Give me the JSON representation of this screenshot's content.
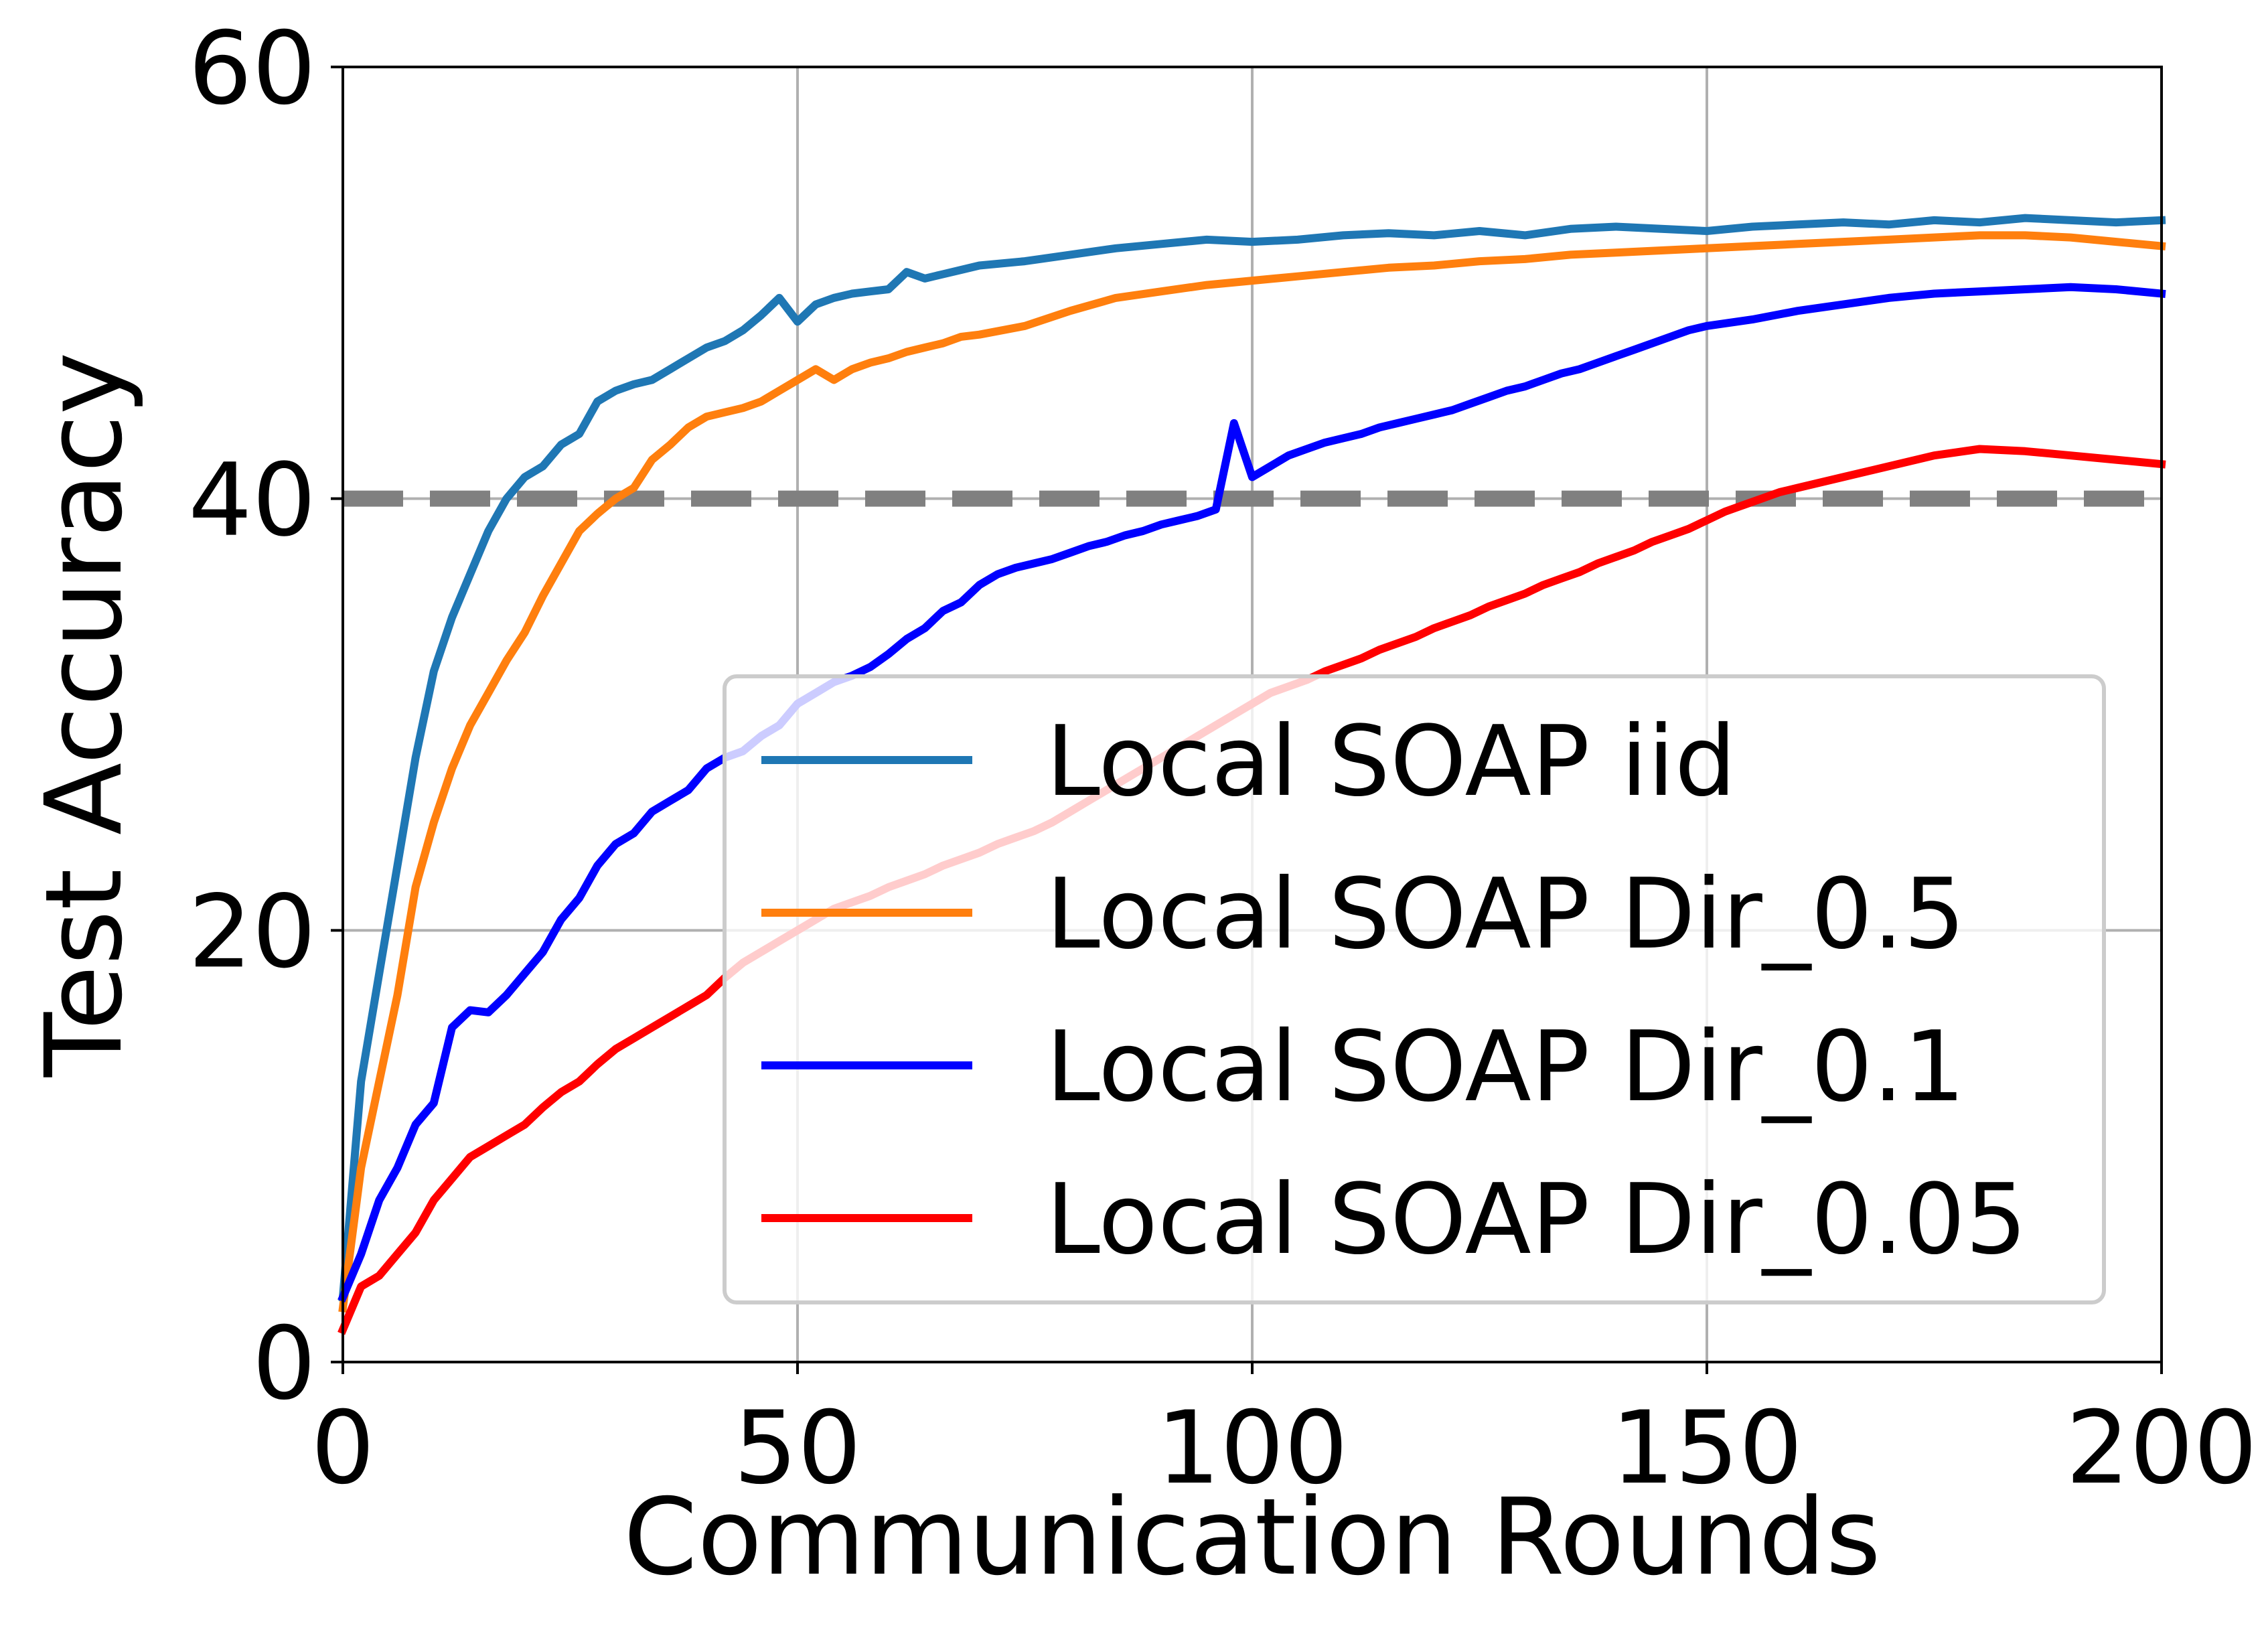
{
  "chart_data": {
    "type": "line",
    "title": "",
    "xlabel": "Communication Rounds",
    "ylabel": "Test Accuracy",
    "xlim": [
      0,
      200
    ],
    "ylim": [
      0,
      60
    ],
    "xticks": [
      0,
      50,
      100,
      150,
      200
    ],
    "yticks": [
      0,
      20,
      40,
      60
    ],
    "xtick_labels": [
      "0",
      "50",
      "100",
      "150",
      "200"
    ],
    "ytick_labels": [
      "0",
      "20",
      "40",
      "60"
    ],
    "grid": true,
    "reference_line": {
      "y": 40,
      "color": "#808080",
      "style": "dashed"
    },
    "legend_position": "lower-right",
    "series": [
      {
        "name": "Local SOAP iid",
        "color": "#1f77b4",
        "points": [
          [
            0,
            3
          ],
          [
            2,
            13
          ],
          [
            4,
            18
          ],
          [
            6,
            23
          ],
          [
            8,
            28
          ],
          [
            10,
            32
          ],
          [
            12,
            34.5
          ],
          [
            14,
            36.5
          ],
          [
            16,
            38.5
          ],
          [
            18,
            40
          ],
          [
            20,
            41
          ],
          [
            22,
            41.5
          ],
          [
            24,
            42.5
          ],
          [
            26,
            43
          ],
          [
            28,
            44.5
          ],
          [
            30,
            45
          ],
          [
            32,
            45.3
          ],
          [
            34,
            45.5
          ],
          [
            36,
            46
          ],
          [
            38,
            46.5
          ],
          [
            40,
            47
          ],
          [
            42,
            47.3
          ],
          [
            44,
            47.8
          ],
          [
            46,
            48.5
          ],
          [
            48,
            49.3
          ],
          [
            50,
            48.2
          ],
          [
            52,
            49
          ],
          [
            54,
            49.3
          ],
          [
            56,
            49.5
          ],
          [
            58,
            49.6
          ],
          [
            60,
            49.7
          ],
          [
            62,
            50.5
          ],
          [
            64,
            50.2
          ],
          [
            66,
            50.4
          ],
          [
            68,
            50.6
          ],
          [
            70,
            50.8
          ],
          [
            75,
            51
          ],
          [
            80,
            51.3
          ],
          [
            85,
            51.6
          ],
          [
            90,
            51.8
          ],
          [
            95,
            52
          ],
          [
            100,
            51.9
          ],
          [
            105,
            52
          ],
          [
            110,
            52.2
          ],
          [
            115,
            52.3
          ],
          [
            120,
            52.2
          ],
          [
            125,
            52.4
          ],
          [
            130,
            52.2
          ],
          [
            135,
            52.5
          ],
          [
            140,
            52.6
          ],
          [
            145,
            52.5
          ],
          [
            150,
            52.4
          ],
          [
            155,
            52.6
          ],
          [
            160,
            52.7
          ],
          [
            165,
            52.8
          ],
          [
            170,
            52.7
          ],
          [
            175,
            52.9
          ],
          [
            180,
            52.8
          ],
          [
            185,
            53
          ],
          [
            190,
            52.9
          ],
          [
            195,
            52.8
          ],
          [
            200,
            52.9
          ]
        ]
      },
      {
        "name": "Local SOAP Dir_0.5",
        "color": "#ff7f0e",
        "points": [
          [
            0,
            2.5
          ],
          [
            2,
            9
          ],
          [
            4,
            13
          ],
          [
            6,
            17
          ],
          [
            8,
            22
          ],
          [
            10,
            25
          ],
          [
            12,
            27.5
          ],
          [
            14,
            29.5
          ],
          [
            16,
            31
          ],
          [
            18,
            32.5
          ],
          [
            20,
            33.8
          ],
          [
            22,
            35.5
          ],
          [
            24,
            37
          ],
          [
            26,
            38.5
          ],
          [
            28,
            39.3
          ],
          [
            30,
            40
          ],
          [
            32,
            40.5
          ],
          [
            34,
            41.8
          ],
          [
            36,
            42.5
          ],
          [
            38,
            43.3
          ],
          [
            40,
            43.8
          ],
          [
            42,
            44
          ],
          [
            44,
            44.2
          ],
          [
            46,
            44.5
          ],
          [
            48,
            45
          ],
          [
            50,
            45.5
          ],
          [
            52,
            46
          ],
          [
            54,
            45.5
          ],
          [
            56,
            46
          ],
          [
            58,
            46.3
          ],
          [
            60,
            46.5
          ],
          [
            62,
            46.8
          ],
          [
            64,
            47
          ],
          [
            66,
            47.2
          ],
          [
            68,
            47.5
          ],
          [
            70,
            47.6
          ],
          [
            75,
            48
          ],
          [
            80,
            48.7
          ],
          [
            85,
            49.3
          ],
          [
            90,
            49.6
          ],
          [
            95,
            49.9
          ],
          [
            100,
            50.1
          ],
          [
            105,
            50.3
          ],
          [
            110,
            50.5
          ],
          [
            115,
            50.7
          ],
          [
            120,
            50.8
          ],
          [
            125,
            51
          ],
          [
            130,
            51.1
          ],
          [
            135,
            51.3
          ],
          [
            140,
            51.4
          ],
          [
            145,
            51.5
          ],
          [
            150,
            51.6
          ],
          [
            155,
            51.7
          ],
          [
            160,
            51.8
          ],
          [
            165,
            51.9
          ],
          [
            170,
            52
          ],
          [
            175,
            52.1
          ],
          [
            180,
            52.2
          ],
          [
            185,
            52.2
          ],
          [
            190,
            52.1
          ],
          [
            195,
            51.9
          ],
          [
            200,
            51.7
          ]
        ]
      },
      {
        "name": "Local SOAP Dir_0.1",
        "color": "#0000ff",
        "points": [
          [
            0,
            3
          ],
          [
            2,
            5
          ],
          [
            4,
            7.5
          ],
          [
            6,
            9
          ],
          [
            8,
            11
          ],
          [
            10,
            12
          ],
          [
            12,
            15.5
          ],
          [
            14,
            16.3
          ],
          [
            16,
            16.2
          ],
          [
            18,
            17
          ],
          [
            20,
            18
          ],
          [
            22,
            19
          ],
          [
            24,
            20.5
          ],
          [
            26,
            21.5
          ],
          [
            28,
            23
          ],
          [
            30,
            24
          ],
          [
            32,
            24.5
          ],
          [
            34,
            25.5
          ],
          [
            36,
            26
          ],
          [
            38,
            26.5
          ],
          [
            40,
            27.5
          ],
          [
            42,
            28
          ],
          [
            44,
            28.3
          ],
          [
            46,
            29
          ],
          [
            48,
            29.5
          ],
          [
            50,
            30.5
          ],
          [
            52,
            31
          ],
          [
            54,
            31.5
          ],
          [
            56,
            31.8
          ],
          [
            58,
            32.2
          ],
          [
            60,
            32.8
          ],
          [
            62,
            33.5
          ],
          [
            64,
            34
          ],
          [
            66,
            34.8
          ],
          [
            68,
            35.2
          ],
          [
            70,
            36
          ],
          [
            72,
            36.5
          ],
          [
            74,
            36.8
          ],
          [
            76,
            37
          ],
          [
            78,
            37.2
          ],
          [
            80,
            37.5
          ],
          [
            82,
            37.8
          ],
          [
            84,
            38
          ],
          [
            86,
            38.3
          ],
          [
            88,
            38.5
          ],
          [
            90,
            38.8
          ],
          [
            92,
            39
          ],
          [
            94,
            39.2
          ],
          [
            96,
            39.5
          ],
          [
            98,
            43.5
          ],
          [
            100,
            41
          ],
          [
            102,
            41.5
          ],
          [
            104,
            42
          ],
          [
            106,
            42.3
          ],
          [
            108,
            42.6
          ],
          [
            110,
            42.8
          ],
          [
            112,
            43
          ],
          [
            114,
            43.3
          ],
          [
            116,
            43.5
          ],
          [
            118,
            43.7
          ],
          [
            120,
            43.9
          ],
          [
            122,
            44.1
          ],
          [
            124,
            44.4
          ],
          [
            126,
            44.7
          ],
          [
            128,
            45
          ],
          [
            130,
            45.2
          ],
          [
            132,
            45.5
          ],
          [
            134,
            45.8
          ],
          [
            136,
            46
          ],
          [
            138,
            46.3
          ],
          [
            140,
            46.6
          ],
          [
            142,
            46.9
          ],
          [
            144,
            47.2
          ],
          [
            146,
            47.5
          ],
          [
            148,
            47.8
          ],
          [
            150,
            48
          ],
          [
            155,
            48.3
          ],
          [
            160,
            48.7
          ],
          [
            165,
            49
          ],
          [
            170,
            49.3
          ],
          [
            175,
            49.5
          ],
          [
            180,
            49.6
          ],
          [
            185,
            49.7
          ],
          [
            190,
            49.8
          ],
          [
            195,
            49.7
          ],
          [
            200,
            49.5
          ]
        ]
      },
      {
        "name": "Local SOAP Dir_0.05",
        "color": "#ff0000",
        "points": [
          [
            0,
            1.5
          ],
          [
            2,
            3.5
          ],
          [
            4,
            4
          ],
          [
            6,
            5
          ],
          [
            8,
            6
          ],
          [
            10,
            7.5
          ],
          [
            12,
            8.5
          ],
          [
            14,
            9.5
          ],
          [
            16,
            10
          ],
          [
            18,
            10.5
          ],
          [
            20,
            11
          ],
          [
            22,
            11.8
          ],
          [
            24,
            12.5
          ],
          [
            26,
            13
          ],
          [
            28,
            13.8
          ],
          [
            30,
            14.5
          ],
          [
            32,
            15
          ],
          [
            34,
            15.5
          ],
          [
            36,
            16
          ],
          [
            38,
            16.5
          ],
          [
            40,
            17
          ],
          [
            42,
            17.8
          ],
          [
            44,
            18.5
          ],
          [
            46,
            19
          ],
          [
            48,
            19.5
          ],
          [
            50,
            20
          ],
          [
            52,
            20.5
          ],
          [
            54,
            21
          ],
          [
            56,
            21.3
          ],
          [
            58,
            21.6
          ],
          [
            60,
            22
          ],
          [
            62,
            22.3
          ],
          [
            64,
            22.6
          ],
          [
            66,
            23
          ],
          [
            68,
            23.3
          ],
          [
            70,
            23.6
          ],
          [
            72,
            24
          ],
          [
            74,
            24.3
          ],
          [
            76,
            24.6
          ],
          [
            78,
            25
          ],
          [
            80,
            25.5
          ],
          [
            82,
            26
          ],
          [
            84,
            26.5
          ],
          [
            86,
            27
          ],
          [
            88,
            27.5
          ],
          [
            90,
            28
          ],
          [
            92,
            28.5
          ],
          [
            94,
            29
          ],
          [
            96,
            29.5
          ],
          [
            98,
            30
          ],
          [
            100,
            30.5
          ],
          [
            102,
            31
          ],
          [
            104,
            31.3
          ],
          [
            106,
            31.6
          ],
          [
            108,
            32
          ],
          [
            110,
            32.3
          ],
          [
            112,
            32.6
          ],
          [
            114,
            33
          ],
          [
            116,
            33.3
          ],
          [
            118,
            33.6
          ],
          [
            120,
            34
          ],
          [
            122,
            34.3
          ],
          [
            124,
            34.6
          ],
          [
            126,
            35
          ],
          [
            128,
            35.3
          ],
          [
            130,
            35.6
          ],
          [
            132,
            36
          ],
          [
            134,
            36.3
          ],
          [
            136,
            36.6
          ],
          [
            138,
            37
          ],
          [
            140,
            37.3
          ],
          [
            142,
            37.6
          ],
          [
            144,
            38
          ],
          [
            146,
            38.3
          ],
          [
            148,
            38.6
          ],
          [
            150,
            39
          ],
          [
            152,
            39.4
          ],
          [
            154,
            39.7
          ],
          [
            156,
            40
          ],
          [
            158,
            40.3
          ],
          [
            160,
            40.5
          ],
          [
            165,
            41
          ],
          [
            170,
            41.5
          ],
          [
            175,
            42
          ],
          [
            180,
            42.3
          ],
          [
            185,
            42.2
          ],
          [
            190,
            42
          ],
          [
            195,
            41.8
          ],
          [
            200,
            41.6
          ]
        ]
      }
    ]
  }
}
